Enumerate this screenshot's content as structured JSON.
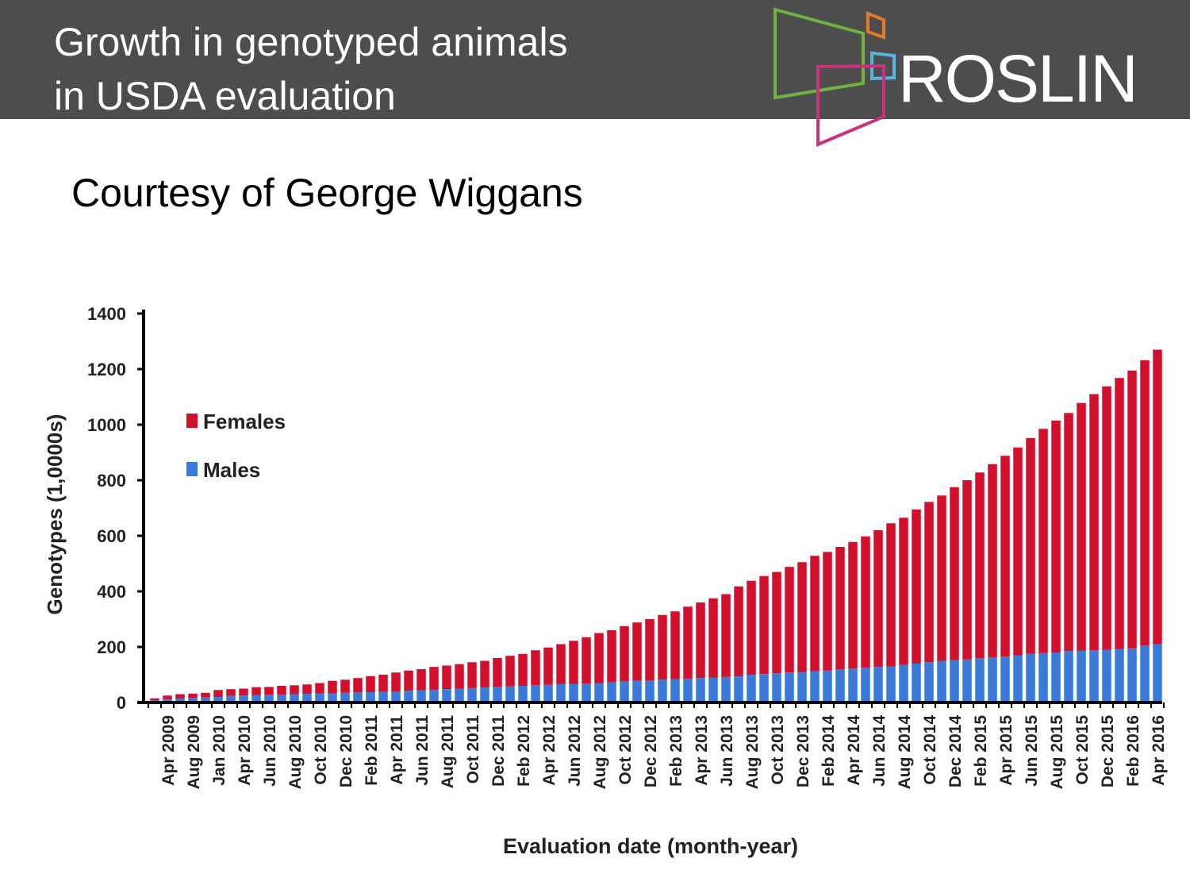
{
  "slide": {
    "title_lines": [
      "Growth in genotyped animals",
      "in USDA evaluation"
    ],
    "subtitle": "Courtesy of George Wiggans",
    "logo": "ROSLIN"
  },
  "chart_data": {
    "type": "stacked_bar",
    "x_label": "Evaluation date (month-year)",
    "y_label": "Genotypes (1,0000s)",
    "categories": [
      null,
      "Apr 2009",
      null,
      "Aug 2009",
      null,
      "Jan 2010",
      null,
      "Apr 2010",
      null,
      "Jun 2010",
      null,
      "Aug 2010",
      null,
      "Oct 2010",
      null,
      "Dec 2010",
      null,
      "Feb 2011",
      null,
      "Apr 2011",
      null,
      "Jun 2011",
      null,
      "Aug 2011",
      null,
      "Oct 2011",
      null,
      "Dec 2011",
      null,
      "Feb 2012",
      null,
      "Apr 2012",
      null,
      "Jun 2012",
      null,
      "Aug 2012",
      null,
      "Oct 2012",
      null,
      "Dec 2012",
      null,
      "Feb 2013",
      null,
      "Apr 2013",
      null,
      "Jun 2013",
      null,
      "Aug 2013",
      null,
      "Oct 2013",
      null,
      "Dec 2013",
      null,
      "Feb 2014",
      null,
      "Apr 2014",
      null,
      "Jun 2014",
      null,
      "Aug 2014",
      null,
      "Oct 2014",
      null,
      "Dec 2014",
      null,
      "Feb 2015",
      null,
      "Apr 2015",
      null,
      "Jun 2015",
      null,
      "Aug 2015",
      null,
      "Oct 2015",
      null,
      "Dec 2015",
      null,
      "Feb 2016",
      null,
      "Apr 2016"
    ],
    "series": [
      {
        "name": "Females",
        "color": "#d3102c",
        "values": [
          7,
          13,
          16,
          16,
          17,
          25,
          24,
          25,
          29,
          28,
          32,
          32,
          34,
          38,
          45,
          47,
          52,
          58,
          62,
          68,
          73,
          76,
          82,
          85,
          88,
          93,
          96,
          104,
          110,
          115,
          126,
          134,
          144,
          156,
          167,
          180,
          188,
          199,
          210,
          220,
          233,
          244,
          259,
          272,
          285,
          298,
          324,
          338,
          353,
          365,
          380,
          395,
          416,
          427,
          440,
          456,
          473,
          492,
          515,
          530,
          555,
          577,
          595,
          623,
          645,
          668,
          696,
          723,
          748,
          777,
          807,
          835,
          857,
          892,
          922,
          948,
          976,
          1000,
          1027,
          1060
        ]
      },
      {
        "name": "Males",
        "color": "#3a7ad9",
        "values": [
          8,
          12,
          14,
          16,
          18,
          20,
          24,
          25,
          26,
          28,
          28,
          30,
          31,
          32,
          33,
          35,
          36,
          37,
          38,
          40,
          42,
          44,
          46,
          48,
          50,
          52,
          54,
          56,
          58,
          60,
          62,
          64,
          66,
          66,
          68,
          70,
          72,
          76,
          78,
          80,
          82,
          84,
          86,
          88,
          90,
          92,
          94,
          100,
          102,
          105,
          108,
          110,
          112,
          115,
          120,
          122,
          125,
          128,
          130,
          135,
          140,
          145,
          150,
          152,
          155,
          160,
          162,
          165,
          170,
          175,
          178,
          180,
          185,
          186,
          188,
          190,
          192,
          195,
          205,
          210
        ]
      }
    ],
    "ylim": [
      0,
      1400
    ],
    "yticks": [
      0,
      200,
      400,
      600,
      800,
      1000,
      1200,
      1400
    ]
  }
}
